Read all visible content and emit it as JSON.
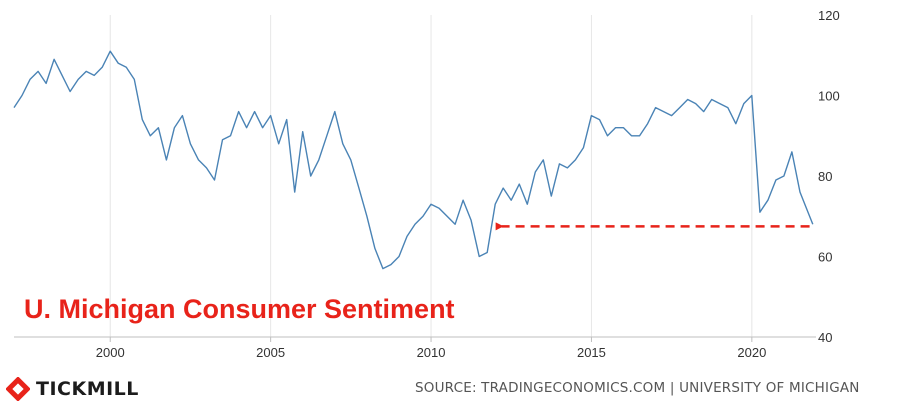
{
  "chart_data": {
    "type": "line",
    "title": "U. Michigan Consumer Sentiment",
    "xlabel": "",
    "ylabel": "",
    "xlim": [
      1997.0,
      2022.0
    ],
    "ylim": [
      40,
      120
    ],
    "x_ticks": [
      2000,
      2005,
      2010,
      2015,
      2020
    ],
    "y_ticks": [
      40,
      60,
      80,
      100,
      120
    ],
    "grid": "vertical",
    "y_axis_side": "right",
    "line_color": "#4a83b5",
    "title_color": "#e8231a",
    "arrow_color": "#e8231a",
    "arrow": {
      "from_x": 2021.8,
      "to_x": 2012.2,
      "y": 67.5
    },
    "series": [
      {
        "x": [
          1997.0,
          1997.25,
          1997.5,
          1997.75,
          1998.0,
          1998.25,
          1998.5,
          1998.75,
          1999.0,
          1999.25,
          1999.5,
          1999.75,
          2000.0,
          2000.25,
          2000.5,
          2000.75,
          2001.0,
          2001.25,
          2001.5,
          2001.75,
          2002.0,
          2002.25,
          2002.5,
          2002.75,
          2003.0,
          2003.25,
          2003.5,
          2003.75,
          2004.0,
          2004.25,
          2004.5,
          2004.75,
          2005.0,
          2005.25,
          2005.5,
          2005.75,
          2006.0,
          2006.25,
          2006.5,
          2006.75,
          2007.0,
          2007.25,
          2007.5,
          2007.75,
          2008.0,
          2008.25,
          2008.5,
          2008.75,
          2009.0,
          2009.25,
          2009.5,
          2009.75,
          2010.0,
          2010.25,
          2010.5,
          2010.75,
          2011.0,
          2011.25,
          2011.5,
          2011.75,
          2012.0,
          2012.25,
          2012.5,
          2012.75,
          2013.0,
          2013.25,
          2013.5,
          2013.75,
          2014.0,
          2014.25,
          2014.5,
          2014.75,
          2015.0,
          2015.25,
          2015.5,
          2015.75,
          2016.0,
          2016.25,
          2016.5,
          2016.75,
          2017.0,
          2017.25,
          2017.5,
          2017.75,
          2018.0,
          2018.25,
          2018.5,
          2018.75,
          2019.0,
          2019.25,
          2019.5,
          2019.75,
          2020.0,
          2020.25,
          2020.5,
          2020.75,
          2021.0,
          2021.25,
          2021.5,
          2021.75,
          2021.9
        ],
        "values": [
          97,
          100,
          104,
          106,
          103,
          109,
          105,
          101,
          104,
          106,
          105,
          107,
          111,
          108,
          107,
          104,
          94,
          90,
          92,
          84,
          92,
          95,
          88,
          84,
          82,
          79,
          89,
          90,
          96,
          92,
          96,
          92,
          95,
          88,
          94,
          76,
          91,
          80,
          84,
          90,
          96,
          88,
          84,
          77,
          70,
          62,
          57,
          58,
          60,
          65,
          68,
          70,
          73,
          72,
          70,
          68,
          74,
          69,
          60,
          61,
          73,
          77,
          74,
          78,
          73,
          81,
          84,
          75,
          83,
          82,
          84,
          87,
          95,
          94,
          90,
          92,
          92,
          90,
          90,
          93,
          97,
          96,
          95,
          97,
          99,
          98,
          96,
          99,
          98,
          97,
          93,
          98,
          100,
          71,
          74,
          79,
          80,
          86,
          76,
          71,
          68
        ]
      }
    ]
  },
  "brand": {
    "logo_text": "TICKMILL",
    "logo_icon": "tickmill-logo-icon",
    "logo_color": "#e8231a"
  },
  "source_text": "SOURCE: TRADINGECONOMICS.COM | UNIVERSITY OF MICHIGAN"
}
